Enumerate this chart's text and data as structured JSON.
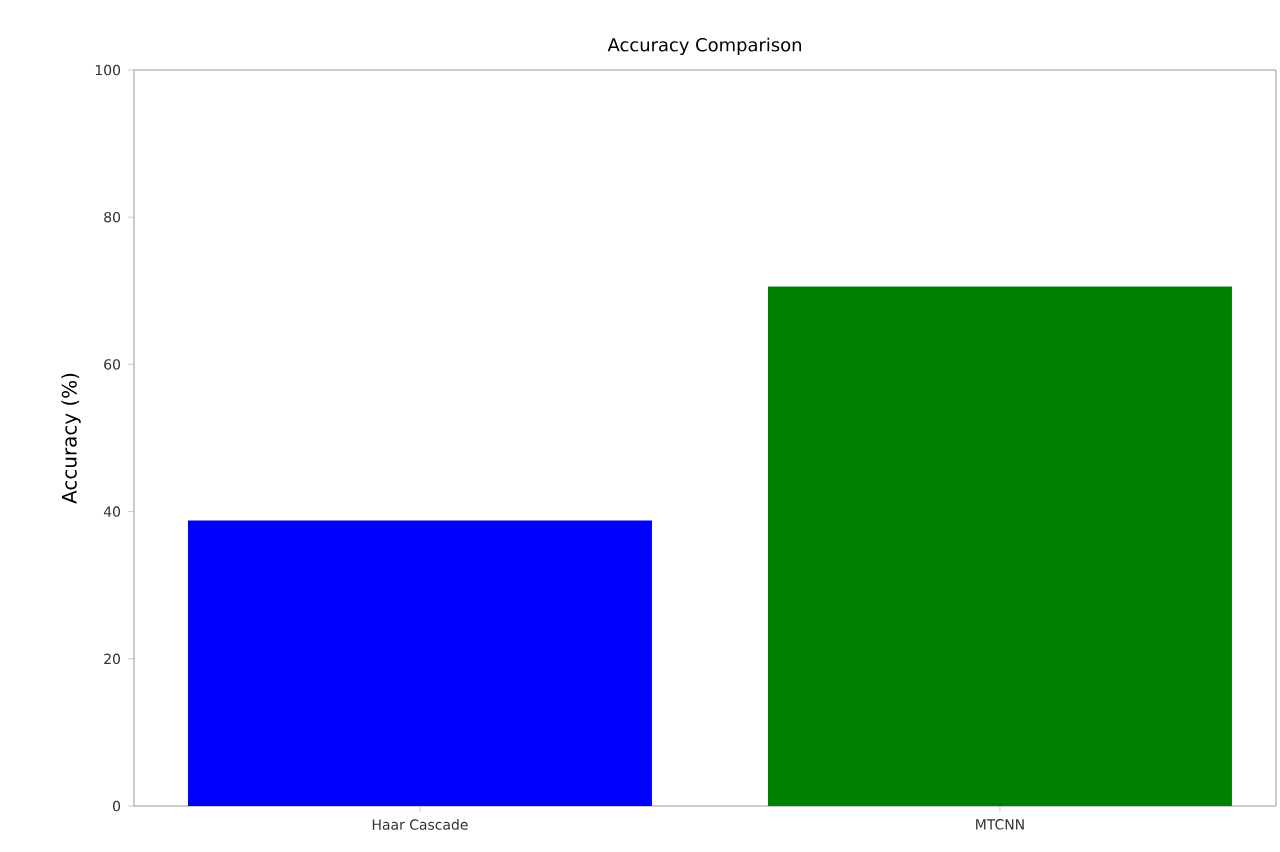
{
  "chart_data": {
    "type": "bar",
    "title": "Accuracy Comparison",
    "ylabel": "Accuracy (%)",
    "categories": [
      "Haar Cascade",
      "MTCNN"
    ],
    "values": [
      38.8,
      70.6
    ],
    "colors": [
      "#0000ff",
      "#008000"
    ],
    "ylim": [
      0,
      100
    ],
    "yticks": [
      0,
      20,
      40,
      60,
      80,
      100
    ],
    "grid": false
  }
}
